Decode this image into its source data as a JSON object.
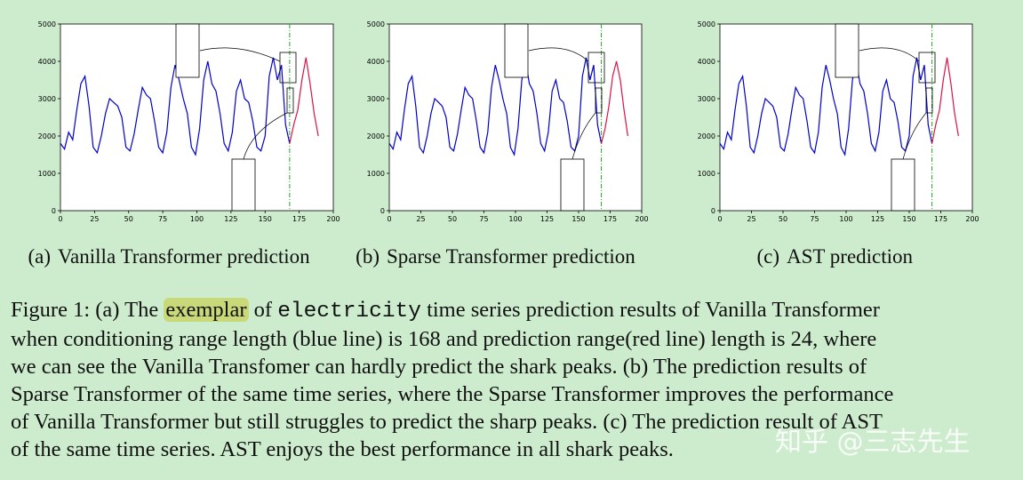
{
  "chart_data": [
    {
      "type": "line",
      "caption_label": "(a)",
      "caption": "Vanilla Transformer prediction",
      "xlim": [
        0,
        200
      ],
      "ylim": [
        0,
        5000
      ],
      "xticks": [
        0,
        25,
        50,
        75,
        100,
        125,
        150,
        175,
        200
      ],
      "yticks": [
        0,
        1000,
        2000,
        3000,
        4000,
        5000
      ],
      "vline": 168,
      "vline_color": "#22aa22",
      "series": [
        {
          "color": "#0000cc",
          "x": [
            0,
            3,
            6,
            9,
            12,
            15,
            18,
            21,
            24,
            27,
            30,
            33,
            36,
            39,
            42,
            45,
            48,
            51,
            54,
            57,
            60,
            63,
            66,
            69,
            72,
            75,
            78,
            81,
            84,
            87,
            90,
            93,
            96,
            99,
            102,
            105,
            108,
            111,
            114,
            117,
            120,
            123,
            126,
            129,
            132,
            135,
            138,
            141,
            144,
            147,
            150,
            153,
            156,
            159,
            162,
            165,
            168
          ],
          "values": [
            1800,
            1650,
            2100,
            1900,
            2700,
            3400,
            3600,
            2800,
            1700,
            1550,
            2000,
            2600,
            3000,
            2900,
            2800,
            2500,
            1700,
            1600,
            2050,
            2700,
            3300,
            3100,
            3000,
            2400,
            1700,
            1550,
            2100,
            3300,
            3900,
            3500,
            3000,
            2600,
            1700,
            1500,
            2200,
            3500,
            4000,
            3400,
            3200,
            2600,
            1800,
            1600,
            2100,
            3200,
            3500,
            3000,
            2900,
            2400,
            1700,
            1600,
            2000,
            3600,
            4100,
            3500,
            3900,
            2300,
            1800
          ]
        },
        {
          "color": "#dd1144",
          "x": [
            168,
            171,
            174,
            177,
            180,
            183,
            186,
            189
          ],
          "values": [
            1800,
            2300,
            2700,
            3500,
            4100,
            3400,
            2600,
            2000
          ]
        }
      ]
    },
    {
      "type": "line",
      "caption_label": "(b)",
      "caption": "Sparse Transformer prediction",
      "xlim": [
        0,
        200
      ],
      "ylim": [
        0,
        5000
      ],
      "xticks": [
        0,
        25,
        50,
        75,
        100,
        125,
        150,
        175,
        200
      ],
      "yticks": [
        0,
        1000,
        2000,
        3000,
        4000,
        5000
      ],
      "vline": 168,
      "vline_color": "#22aa22",
      "series": [
        {
          "color": "#0000cc",
          "x": [
            0,
            3,
            6,
            9,
            12,
            15,
            18,
            21,
            24,
            27,
            30,
            33,
            36,
            39,
            42,
            45,
            48,
            51,
            54,
            57,
            60,
            63,
            66,
            69,
            72,
            75,
            78,
            81,
            84,
            87,
            90,
            93,
            96,
            99,
            102,
            105,
            108,
            111,
            114,
            117,
            120,
            123,
            126,
            129,
            132,
            135,
            138,
            141,
            144,
            147,
            150,
            153,
            156,
            159,
            162,
            165,
            168
          ],
          "values": [
            1800,
            1650,
            2100,
            1900,
            2700,
            3400,
            3600,
            2800,
            1700,
            1550,
            2000,
            2600,
            3000,
            2900,
            2800,
            2500,
            1700,
            1600,
            2050,
            2700,
            3300,
            3100,
            3000,
            2400,
            1700,
            1550,
            2100,
            3300,
            3900,
            3500,
            3000,
            2600,
            1700,
            1500,
            2200,
            3500,
            4000,
            3400,
            3200,
            2600,
            1800,
            1600,
            2100,
            3200,
            3500,
            3000,
            2900,
            2400,
            1700,
            1600,
            2000,
            3600,
            4100,
            3500,
            3900,
            2300,
            1800
          ]
        },
        {
          "color": "#dd1144",
          "x": [
            168,
            171,
            174,
            177,
            180,
            183,
            186,
            189
          ],
          "values": [
            1800,
            2200,
            2800,
            3600,
            4000,
            3500,
            2700,
            2000
          ]
        }
      ]
    },
    {
      "type": "line",
      "caption_label": "(c)",
      "caption": "AST prediction",
      "xlim": [
        0,
        200
      ],
      "ylim": [
        0,
        5000
      ],
      "xticks": [
        0,
        25,
        50,
        75,
        100,
        125,
        150,
        175,
        200
      ],
      "yticks": [
        0,
        1000,
        2000,
        3000,
        4000,
        5000
      ],
      "vline": 168,
      "vline_color": "#22aa22",
      "series": [
        {
          "color": "#0000cc",
          "x": [
            0,
            3,
            6,
            9,
            12,
            15,
            18,
            21,
            24,
            27,
            30,
            33,
            36,
            39,
            42,
            45,
            48,
            51,
            54,
            57,
            60,
            63,
            66,
            69,
            72,
            75,
            78,
            81,
            84,
            87,
            90,
            93,
            96,
            99,
            102,
            105,
            108,
            111,
            114,
            117,
            120,
            123,
            126,
            129,
            132,
            135,
            138,
            141,
            144,
            147,
            150,
            153,
            156,
            159,
            162,
            165,
            168
          ],
          "values": [
            1800,
            1650,
            2100,
            1900,
            2700,
            3400,
            3600,
            2800,
            1700,
            1550,
            2000,
            2600,
            3000,
            2900,
            2800,
            2500,
            1700,
            1600,
            2050,
            2700,
            3300,
            3100,
            3000,
            2400,
            1700,
            1550,
            2100,
            3300,
            3900,
            3500,
            3000,
            2600,
            1700,
            1500,
            2200,
            3500,
            4000,
            3400,
            3200,
            2600,
            1800,
            1600,
            2100,
            3200,
            3500,
            3000,
            2900,
            2400,
            1700,
            1600,
            2000,
            3600,
            4100,
            3500,
            3900,
            2300,
            1800
          ]
        },
        {
          "color": "#dd1144",
          "x": [
            168,
            171,
            174,
            177,
            180,
            183,
            186,
            189
          ],
          "values": [
            1800,
            2300,
            2700,
            3500,
            4100,
            3400,
            2600,
            2000
          ]
        }
      ]
    }
  ],
  "figure_caption": {
    "line1": [
      "Figure 1: (a) The ",
      "exemplar",
      " of ",
      "electricity",
      " time series prediction results of Vanilla Transformer"
    ],
    "lines": [
      "when conditioning range length (blue line) is 168 and prediction range(red line) length is 24, where",
      "we can see the Vanilla Transfomer can hardly predict the shark peaks. (b) The prediction results of",
      "Sparse Transformer of the same time series, where the Sparse Transformer improves the performance",
      "of Vanilla Transformer but still struggles to predict the sharp peaks. (c) The prediction result of AST",
      "of the same time series. AST enjoys the best performance in all shark peaks."
    ]
  },
  "watermark": "知乎 @三志先生"
}
